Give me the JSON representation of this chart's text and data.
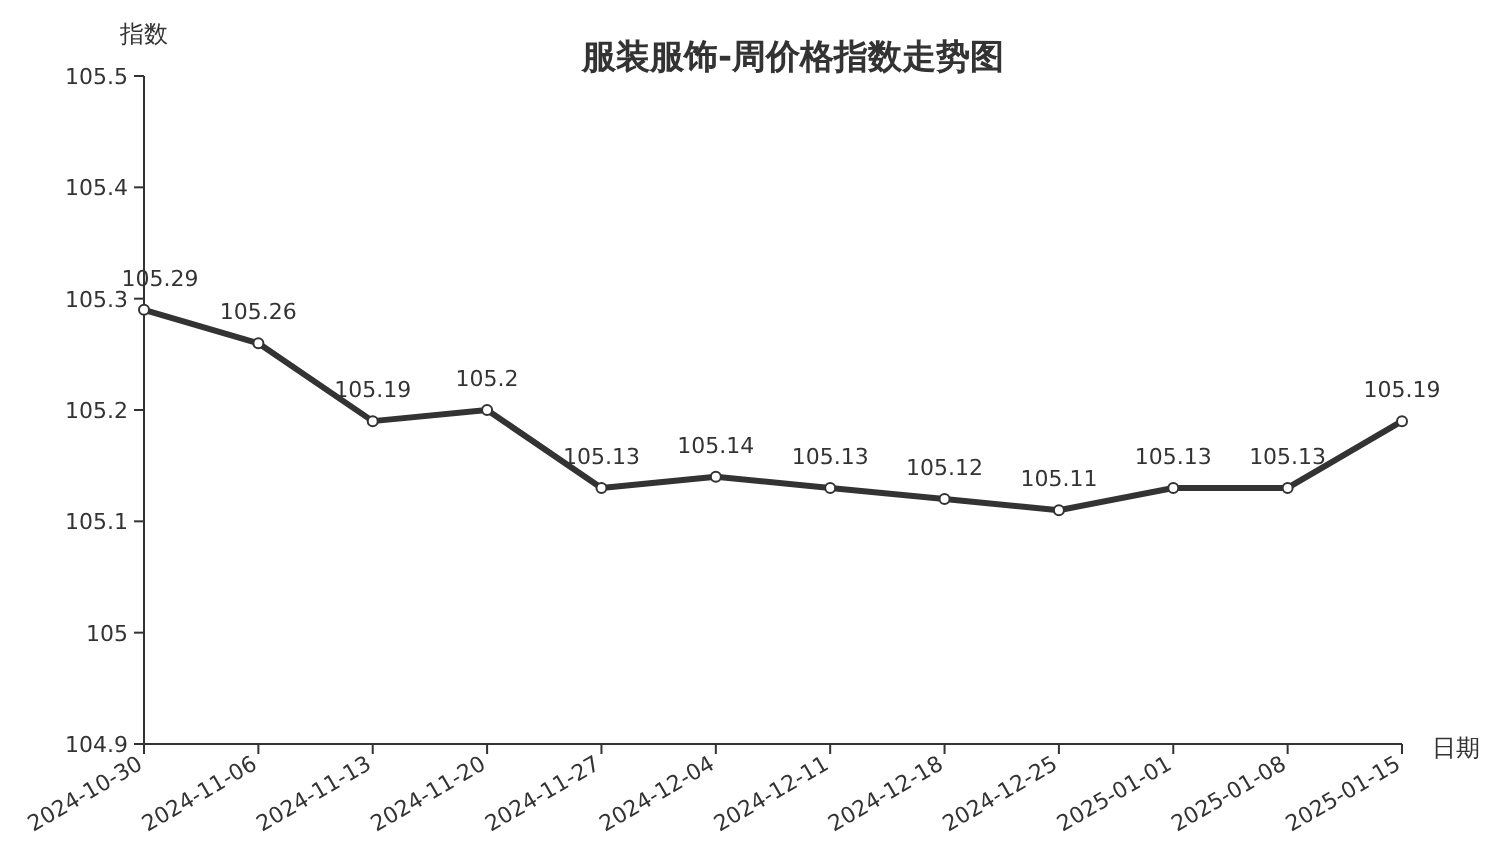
{
  "chart_data": {
    "type": "line",
    "title": "服装服饰-周价格指数走势图",
    "xlabel": "日期",
    "ylabel": "指数",
    "categories": [
      "2024-10-30",
      "2024-11-06",
      "2024-11-13",
      "2024-11-20",
      "2024-11-27",
      "2024-12-04",
      "2024-12-11",
      "2024-12-18",
      "2024-12-25",
      "2025-01-01",
      "2025-01-08",
      "2025-01-15"
    ],
    "series": [
      {
        "color": "#333333",
        "values": [
          105.29,
          105.26,
          105.19,
          105.2,
          105.13,
          105.14,
          105.13,
          105.12,
          105.11,
          105.13,
          105.13,
          105.19
        ]
      }
    ],
    "ylim": [
      104.9,
      105.5
    ],
    "yticks": [
      104.9,
      105,
      105.1,
      105.2,
      105.3,
      105.4,
      105.5
    ],
    "data_labels": true,
    "marker": "circle",
    "grid": false
  }
}
